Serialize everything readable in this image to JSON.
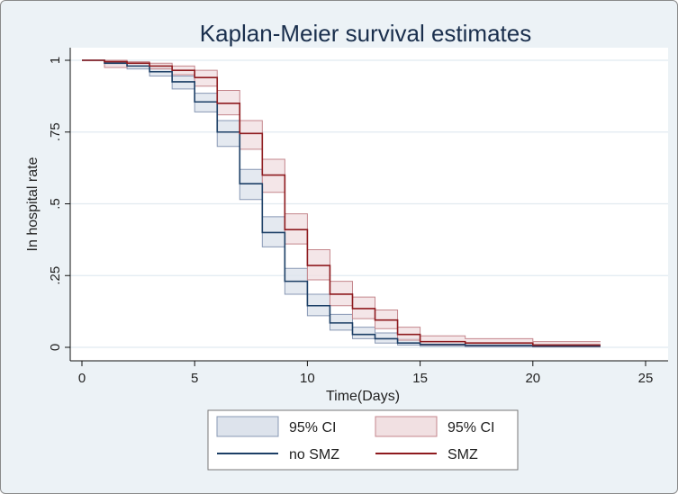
{
  "chart_data": {
    "type": "line",
    "subtype": "kaplan-meier-step",
    "title": "Kaplan-Meier survival estimates",
    "xlabel": "Time(Days)",
    "ylabel": "In hospital rate",
    "xlim": [
      0,
      25
    ],
    "ylim": [
      0,
      1
    ],
    "xticks": [
      0,
      5,
      10,
      15,
      20,
      25
    ],
    "yticks": [
      {
        "value": 0,
        "label": "0"
      },
      {
        "value": 0.25,
        "label": ".25"
      },
      {
        "value": 0.5,
        "label": ".5"
      },
      {
        "value": 0.75,
        "label": ".75"
      },
      {
        "value": 1,
        "label": "1"
      }
    ],
    "grid": "horizontal",
    "legend_position": "bottom",
    "series": [
      {
        "name": "no SMZ",
        "ci_label": "95% CI",
        "line_color": "#1c3f66",
        "ci_fill": "#dde3ec",
        "ci_edge": "#8898b4",
        "steps": [
          {
            "t": 0,
            "s": 1.0,
            "lo": 1.0,
            "hi": 1.0
          },
          {
            "t": 1,
            "s": 0.99,
            "lo": 0.985,
            "hi": 0.995
          },
          {
            "t": 2,
            "s": 0.98,
            "lo": 0.97,
            "hi": 0.99
          },
          {
            "t": 3,
            "s": 0.96,
            "lo": 0.945,
            "hi": 0.975
          },
          {
            "t": 4,
            "s": 0.925,
            "lo": 0.9,
            "hi": 0.945
          },
          {
            "t": 5,
            "s": 0.855,
            "lo": 0.82,
            "hi": 0.885
          },
          {
            "t": 6,
            "s": 0.75,
            "lo": 0.7,
            "hi": 0.79
          },
          {
            "t": 7,
            "s": 0.57,
            "lo": 0.515,
            "hi": 0.62
          },
          {
            "t": 8,
            "s": 0.4,
            "lo": 0.35,
            "hi": 0.455
          },
          {
            "t": 9,
            "s": 0.23,
            "lo": 0.185,
            "hi": 0.275
          },
          {
            "t": 10,
            "s": 0.145,
            "lo": 0.11,
            "hi": 0.185
          },
          {
            "t": 11,
            "s": 0.085,
            "lo": 0.06,
            "hi": 0.115
          },
          {
            "t": 12,
            "s": 0.045,
            "lo": 0.03,
            "hi": 0.07
          },
          {
            "t": 13,
            "s": 0.03,
            "lo": 0.015,
            "hi": 0.05
          },
          {
            "t": 14,
            "s": 0.015,
            "lo": 0.008,
            "hi": 0.03
          },
          {
            "t": 15,
            "s": 0.01,
            "lo": 0.004,
            "hi": 0.02
          },
          {
            "t": 17,
            "s": 0.007,
            "lo": 0.002,
            "hi": 0.015
          },
          {
            "t": 20,
            "s": 0.004,
            "lo": 0.001,
            "hi": 0.01
          },
          {
            "t": 23,
            "s": 0.004,
            "lo": 0.001,
            "hi": 0.01
          }
        ]
      },
      {
        "name": "SMZ",
        "ci_label": "95% CI",
        "line_color": "#8e1a1e",
        "ci_fill": "#f1e0e2",
        "ci_edge": "#c4868c",
        "steps": [
          {
            "t": 0,
            "s": 1.0,
            "lo": 1.0,
            "hi": 1.0
          },
          {
            "t": 1,
            "s": 0.995,
            "lo": 0.975,
            "hi": 1.0
          },
          {
            "t": 2,
            "s": 0.99,
            "lo": 0.98,
            "hi": 0.995
          },
          {
            "t": 3,
            "s": 0.98,
            "lo": 0.97,
            "hi": 0.99
          },
          {
            "t": 4,
            "s": 0.965,
            "lo": 0.95,
            "hi": 0.98
          },
          {
            "t": 5,
            "s": 0.94,
            "lo": 0.91,
            "hi": 0.965
          },
          {
            "t": 6,
            "s": 0.85,
            "lo": 0.81,
            "hi": 0.895
          },
          {
            "t": 7,
            "s": 0.745,
            "lo": 0.69,
            "hi": 0.79
          },
          {
            "t": 8,
            "s": 0.6,
            "lo": 0.54,
            "hi": 0.655
          },
          {
            "t": 9,
            "s": 0.41,
            "lo": 0.36,
            "hi": 0.465
          },
          {
            "t": 10,
            "s": 0.285,
            "lo": 0.235,
            "hi": 0.34
          },
          {
            "t": 11,
            "s": 0.185,
            "lo": 0.145,
            "hi": 0.23
          },
          {
            "t": 12,
            "s": 0.135,
            "lo": 0.1,
            "hi": 0.175
          },
          {
            "t": 13,
            "s": 0.095,
            "lo": 0.065,
            "hi": 0.13
          },
          {
            "t": 14,
            "s": 0.045,
            "lo": 0.025,
            "hi": 0.07
          },
          {
            "t": 15,
            "s": 0.02,
            "lo": 0.008,
            "hi": 0.04
          },
          {
            "t": 17,
            "s": 0.015,
            "lo": 0.005,
            "hi": 0.03
          },
          {
            "t": 20,
            "s": 0.008,
            "lo": 0.002,
            "hi": 0.02
          },
          {
            "t": 23,
            "s": 0.008,
            "lo": 0.002,
            "hi": 0.02
          }
        ]
      }
    ]
  },
  "colors": {
    "frame_background": "#ecf2f6",
    "plot_background": "#ffffff",
    "grid": "#e1eaf0",
    "axis": "#111111",
    "title": "#1a2f4d"
  }
}
